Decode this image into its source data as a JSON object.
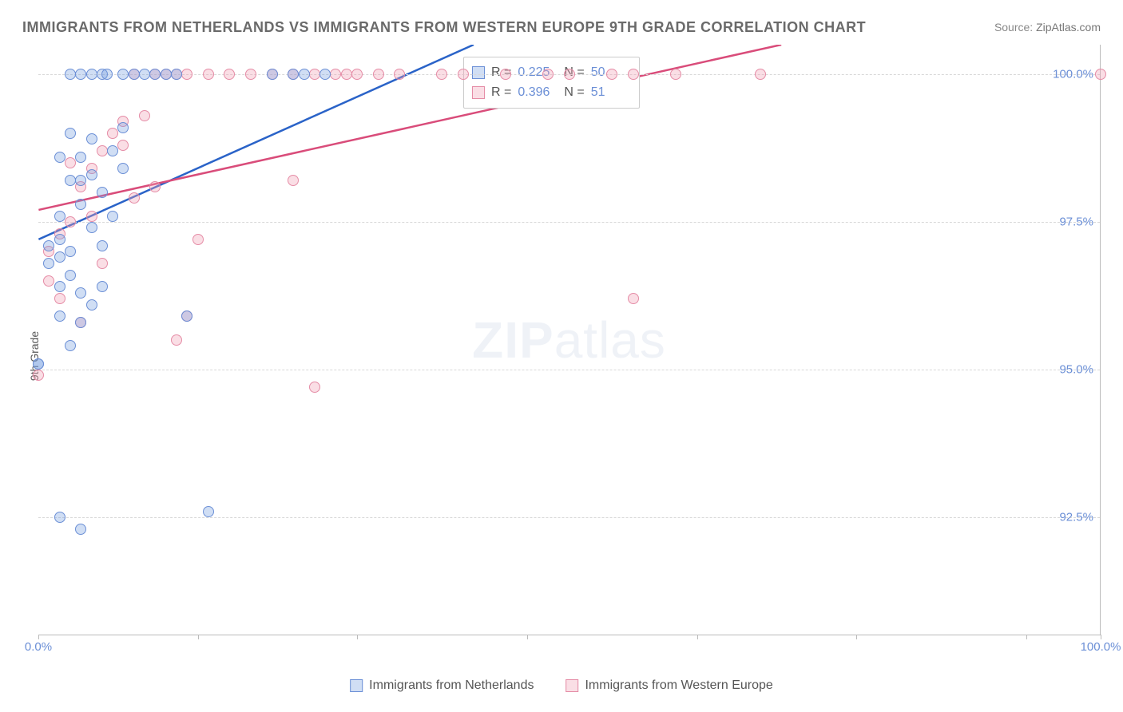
{
  "title": "IMMIGRANTS FROM NETHERLANDS VS IMMIGRANTS FROM WESTERN EUROPE 9TH GRADE CORRELATION CHART",
  "source_label": "Source:",
  "source_name": "ZipAtlas.com",
  "ylabel": "9th Grade",
  "watermark_a": "ZIP",
  "watermark_b": "atlas",
  "chart": {
    "type": "scatter-with-trend",
    "background_color": "#ffffff",
    "grid_color": "#d8d8d8",
    "axis_color": "#bbbbbb",
    "tick_color": "#6b8fd6",
    "xlim": [
      0,
      100
    ],
    "ylim": [
      90.5,
      100.5
    ],
    "yticks": [
      92.5,
      95.0,
      97.5,
      100.0
    ],
    "ytick_labels": [
      "92.5%",
      "95.0%",
      "97.5%",
      "100.0%"
    ],
    "xtick_positions": [
      0,
      15,
      30,
      46,
      62,
      77,
      93,
      100
    ],
    "xtick_labels_shown": {
      "0": "0.0%",
      "100": "100.0%"
    },
    "point_radius": 7,
    "point_fill_opacity": 0.35,
    "point_stroke_width": 1.5,
    "trend_line_width": 2.5
  },
  "series": {
    "a": {
      "label": "Immigrants from Netherlands",
      "color_stroke": "#6b8fd6",
      "color_fill": "#78a0e0",
      "R": "0.225",
      "N": "50",
      "trend": {
        "x1": 0,
        "y1": 97.2,
        "x2": 41,
        "y2": 100.5
      },
      "trend_color": "#2a63c8",
      "points": [
        [
          0,
          95.1
        ],
        [
          0,
          95.1
        ],
        [
          1,
          97.1
        ],
        [
          1,
          96.8
        ],
        [
          2,
          97.6
        ],
        [
          2,
          97.2
        ],
        [
          2,
          96.9
        ],
        [
          3,
          96.6
        ],
        [
          2,
          98.6
        ],
        [
          3,
          99.0
        ],
        [
          4,
          98.6
        ],
        [
          4,
          98.2
        ],
        [
          5,
          98.9
        ],
        [
          5,
          98.3
        ],
        [
          3,
          100
        ],
        [
          4,
          100
        ],
        [
          5,
          100
        ],
        [
          6,
          100
        ],
        [
          6.5,
          100
        ],
        [
          8,
          100
        ],
        [
          9,
          100
        ],
        [
          10,
          100
        ],
        [
          11,
          100
        ],
        [
          12,
          100
        ],
        [
          13,
          100
        ],
        [
          2,
          96.4
        ],
        [
          3,
          97.0
        ],
        [
          4,
          96.3
        ],
        [
          5,
          97.4
        ],
        [
          6,
          98.0
        ],
        [
          7,
          98.7
        ],
        [
          8,
          98.4
        ],
        [
          2,
          95.9
        ],
        [
          3,
          95.4
        ],
        [
          4,
          95.8
        ],
        [
          5,
          96.1
        ],
        [
          6,
          96.4
        ],
        [
          14,
          95.9
        ],
        [
          2,
          92.5
        ],
        [
          4,
          92.3
        ],
        [
          16,
          92.6
        ],
        [
          25,
          100
        ],
        [
          22,
          100
        ],
        [
          24,
          100
        ],
        [
          27,
          100
        ],
        [
          7,
          97.6
        ],
        [
          6,
          97.1
        ],
        [
          3,
          98.2
        ],
        [
          4,
          97.8
        ],
        [
          8,
          99.1
        ]
      ]
    },
    "b": {
      "label": "Immigrants from Western Europe",
      "color_stroke": "#e58ca6",
      "color_fill": "#f0a0b4",
      "R": "0.396",
      "N": "51",
      "trend": {
        "x1": 0,
        "y1": 97.7,
        "x2": 70,
        "y2": 100.5
      },
      "trend_color": "#d94c7a",
      "points": [
        [
          0,
          94.9
        ],
        [
          1,
          96.5
        ],
        [
          2,
          97.3
        ],
        [
          3,
          97.5
        ],
        [
          4,
          98.1
        ],
        [
          5,
          98.4
        ],
        [
          6,
          98.7
        ],
        [
          7,
          99.0
        ],
        [
          8,
          99.2
        ],
        [
          9,
          100
        ],
        [
          10,
          99.3
        ],
        [
          11,
          100
        ],
        [
          12,
          100
        ],
        [
          13,
          100
        ],
        [
          14,
          100
        ],
        [
          16,
          100
        ],
        [
          18,
          100
        ],
        [
          20,
          100
        ],
        [
          22,
          100
        ],
        [
          24,
          100
        ],
        [
          26,
          100
        ],
        [
          28,
          100
        ],
        [
          29,
          100
        ],
        [
          30,
          100
        ],
        [
          32,
          100
        ],
        [
          34,
          100
        ],
        [
          38,
          100
        ],
        [
          40,
          100
        ],
        [
          44,
          100
        ],
        [
          48,
          100
        ],
        [
          50,
          100
        ],
        [
          54,
          100
        ],
        [
          56,
          100
        ],
        [
          60,
          100
        ],
        [
          68,
          100
        ],
        [
          100,
          100
        ],
        [
          2,
          96.2
        ],
        [
          4,
          95.8
        ],
        [
          9,
          97.9
        ],
        [
          13,
          95.5
        ],
        [
          15,
          97.2
        ],
        [
          11,
          98.1
        ],
        [
          8,
          98.8
        ],
        [
          24,
          98.2
        ],
        [
          26,
          94.7
        ],
        [
          56,
          96.2
        ],
        [
          14,
          95.9
        ],
        [
          1,
          97.0
        ],
        [
          5,
          97.6
        ],
        [
          3,
          98.5
        ],
        [
          6,
          96.8
        ]
      ]
    }
  },
  "stats_box": {
    "r_label": "R =",
    "n_label": "N ="
  }
}
